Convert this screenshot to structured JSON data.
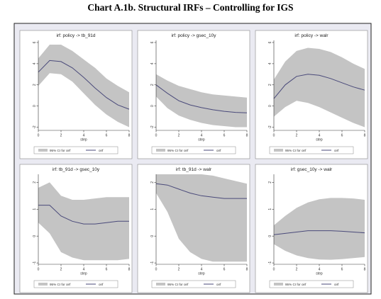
{
  "title": "Chart A.1b. Structural IRFs – Controlling for IGS",
  "style": {
    "band_color": "#c4c4c4",
    "line_color": "#4a4a7a",
    "panel_bg": "#ffffff",
    "frame_bg": "#eaeaf2"
  },
  "chart_data": [
    {
      "type": "area",
      "title": "irf: policy -> tb_91d",
      "xlabel": "step",
      "x": [
        0,
        1,
        2,
        3,
        4,
        5,
        6,
        7,
        8
      ],
      "xticks": [
        "0",
        "2",
        "4",
        "6",
        "8"
      ],
      "ylim": [
        -2.3,
        6.2
      ],
      "yticks": [
        "-2",
        "0",
        "2",
        "4",
        "6"
      ],
      "series": [
        {
          "name": "95% CI for oirf",
          "lower": [
            1.9,
            3.1,
            3.0,
            2.3,
            1.2,
            0.1,
            -0.8,
            -1.5,
            -2.0
          ],
          "upper": [
            4.5,
            5.8,
            5.8,
            5.2,
            4.4,
            3.6,
            2.6,
            1.9,
            1.3
          ]
        },
        {
          "name": "oirf",
          "values": [
            3.2,
            4.3,
            4.2,
            3.6,
            2.7,
            1.7,
            0.8,
            0.1,
            -0.3
          ]
        }
      ],
      "legend": [
        "95% CI for oirf",
        "oirf"
      ]
    },
    {
      "type": "area",
      "title": "irf: policy -> gsec_10y",
      "xlabel": "step",
      "x": [
        0,
        1,
        2,
        3,
        4,
        5,
        6,
        7,
        8
      ],
      "xticks": [
        "0",
        "2",
        "4",
        "6",
        "8"
      ],
      "ylim": [
        -2.3,
        6.2
      ],
      "yticks": [
        "-2",
        "0",
        "2",
        "4",
        "6"
      ],
      "series": [
        {
          "name": "95% CI for oirf",
          "lower": [
            0.9,
            -0.2,
            -0.9,
            -1.3,
            -1.6,
            -1.8,
            -1.9,
            -2.0,
            -2.0
          ],
          "upper": [
            3.0,
            2.4,
            1.9,
            1.6,
            1.3,
            1.1,
            1.0,
            0.9,
            0.8
          ]
        },
        {
          "name": "oirf",
          "values": [
            2.0,
            1.2,
            0.5,
            0.1,
            -0.15,
            -0.35,
            -0.5,
            -0.6,
            -0.65
          ]
        }
      ],
      "legend": [
        "95% CI for oirf",
        "oirf"
      ]
    },
    {
      "type": "area",
      "title": "irf: policy -> walr",
      "xlabel": "step",
      "x": [
        0,
        1,
        2,
        3,
        4,
        5,
        6,
        7,
        8
      ],
      "xticks": [
        "0",
        "2",
        "4",
        "6",
        "8"
      ],
      "ylim": [
        -2.3,
        6.2
      ],
      "yticks": [
        "-2",
        "0",
        "2",
        "4",
        "6"
      ],
      "series": [
        {
          "name": "95% CI for oirf",
          "lower": [
            -1.0,
            -0.1,
            0.5,
            0.3,
            -0.1,
            -0.6,
            -1.1,
            -1.6,
            -2.0
          ],
          "upper": [
            2.5,
            4.2,
            5.2,
            5.5,
            5.4,
            5.1,
            4.6,
            4.0,
            3.5
          ]
        },
        {
          "name": "oirf",
          "values": [
            0.7,
            2.0,
            2.8,
            3.0,
            2.9,
            2.6,
            2.2,
            1.8,
            1.5
          ]
        }
      ],
      "legend": [
        "95% CI for oirf",
        "oirf"
      ]
    },
    {
      "type": "area",
      "title": "irf: tb_91d -> gsec_10y",
      "xlabel": "step",
      "x": [
        0,
        1,
        2,
        3,
        4,
        5,
        6,
        7,
        8
      ],
      "xticks": [
        "0",
        "2",
        "4",
        "6",
        "8"
      ],
      "ylim": [
        -1.05,
        2.3
      ],
      "yticks": [
        "-1",
        "0",
        "1",
        "2"
      ],
      "series": [
        {
          "name": "95% CI for oirf",
          "lower": [
            0.5,
            0.1,
            -0.6,
            -0.8,
            -0.9,
            -0.9,
            -0.9,
            -0.9,
            -0.85
          ],
          "upper": [
            1.8,
            2.0,
            1.5,
            1.35,
            1.35,
            1.4,
            1.45,
            1.45,
            1.45
          ]
        },
        {
          "name": "oirf",
          "values": [
            1.15,
            1.15,
            0.75,
            0.55,
            0.45,
            0.45,
            0.5,
            0.55,
            0.55
          ]
        }
      ],
      "legend": [
        "95% CI for oirf",
        "oirf"
      ]
    },
    {
      "type": "area",
      "title": "irf: tb_91d -> walr",
      "xlabel": "step",
      "x": [
        0,
        1,
        2,
        3,
        4,
        5,
        6,
        7,
        8
      ],
      "xticks": [
        "0",
        "2",
        "4",
        "6",
        "8"
      ],
      "ylim": [
        -1.05,
        2.3
      ],
      "yticks": [
        "-1",
        "0",
        "1",
        "2"
      ],
      "series": [
        {
          "name": "95% CI for oirf",
          "lower": [
            1.6,
            0.9,
            -0.1,
            -0.6,
            -0.85,
            -0.95,
            -0.95,
            -0.95,
            -0.95
          ],
          "upper": [
            2.3,
            2.3,
            2.3,
            2.3,
            2.3,
            2.25,
            2.15,
            2.05,
            1.95
          ]
        },
        {
          "name": "oirf",
          "values": [
            1.95,
            1.9,
            1.75,
            1.6,
            1.5,
            1.45,
            1.4,
            1.4,
            1.4
          ]
        }
      ],
      "legend": [
        "95% CI for oirf",
        "oirf"
      ]
    },
    {
      "type": "area",
      "title": "irf: gsec_10y -> walr",
      "xlabel": "step",
      "x": [
        0,
        1,
        2,
        3,
        4,
        5,
        6,
        7,
        8
      ],
      "xticks": [
        "0",
        "2",
        "4",
        "6",
        "8"
      ],
      "ylim": [
        -1.05,
        2.3
      ],
      "yticks": [
        "-1",
        "0",
        "1",
        "2"
      ],
      "series": [
        {
          "name": "95% CI for oirf",
          "lower": [
            -0.3,
            -0.55,
            -0.72,
            -0.82,
            -0.87,
            -0.88,
            -0.86,
            -0.82,
            -0.78
          ],
          "upper": [
            0.4,
            0.75,
            1.05,
            1.25,
            1.37,
            1.42,
            1.42,
            1.4,
            1.35
          ]
        },
        {
          "name": "oirf",
          "values": [
            0.05,
            0.1,
            0.15,
            0.2,
            0.2,
            0.2,
            0.18,
            0.15,
            0.12
          ]
        }
      ],
      "legend": [
        "95% CI for oirf",
        "oirf"
      ]
    }
  ]
}
